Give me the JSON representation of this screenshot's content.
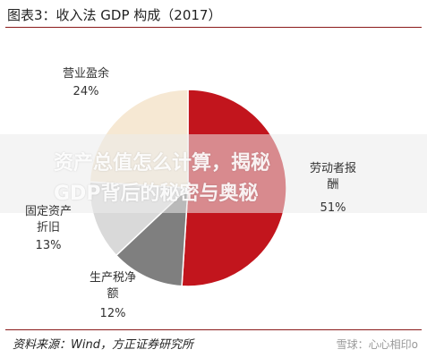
{
  "chart_data": {
    "type": "pie",
    "title": "图表3：收入法 GDP 构成（2017）",
    "categories": [
      "劳动者报酬",
      "生产税净额",
      "固定资产折旧",
      "营业盈余"
    ],
    "values": [
      51,
      12,
      13,
      24
    ],
    "value_labels": [
      "51%",
      "12%",
      "13%",
      "24%"
    ],
    "colors": [
      "#c2151d",
      "#7f7f7f",
      "#d9d9d9",
      "#f6e8d3"
    ],
    "source": "资料来源：Wind，方正证券研究所"
  },
  "overlay": {
    "lines": [
      "资产总值怎么计算，揭秘",
      "GDP背后的秘密与奥秘"
    ]
  },
  "watermark": "雪球：心心相印o"
}
